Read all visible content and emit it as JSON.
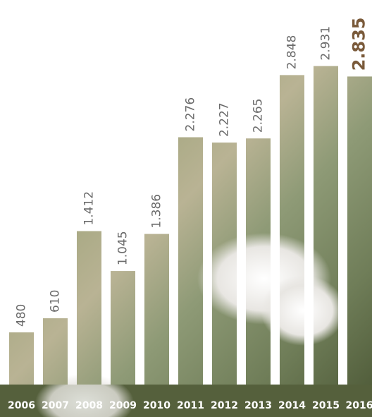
{
  "chart_data": {
    "type": "bar",
    "categories": [
      "2006",
      "2007",
      "2008",
      "2009",
      "2010",
      "2011",
      "2012",
      "2013",
      "2014",
      "2015",
      "2016"
    ],
    "values": [
      480,
      610,
      1412,
      1045,
      1386,
      2276,
      2227,
      2265,
      2848,
      2931,
      2835
    ],
    "value_labels": [
      "480",
      "610",
      "1.412",
      "1.045",
      "1.386",
      "2.276",
      "2.227",
      "2.265",
      "2.848",
      "2.931",
      "2.835"
    ],
    "ylim": [
      0,
      3000
    ]
  }
}
